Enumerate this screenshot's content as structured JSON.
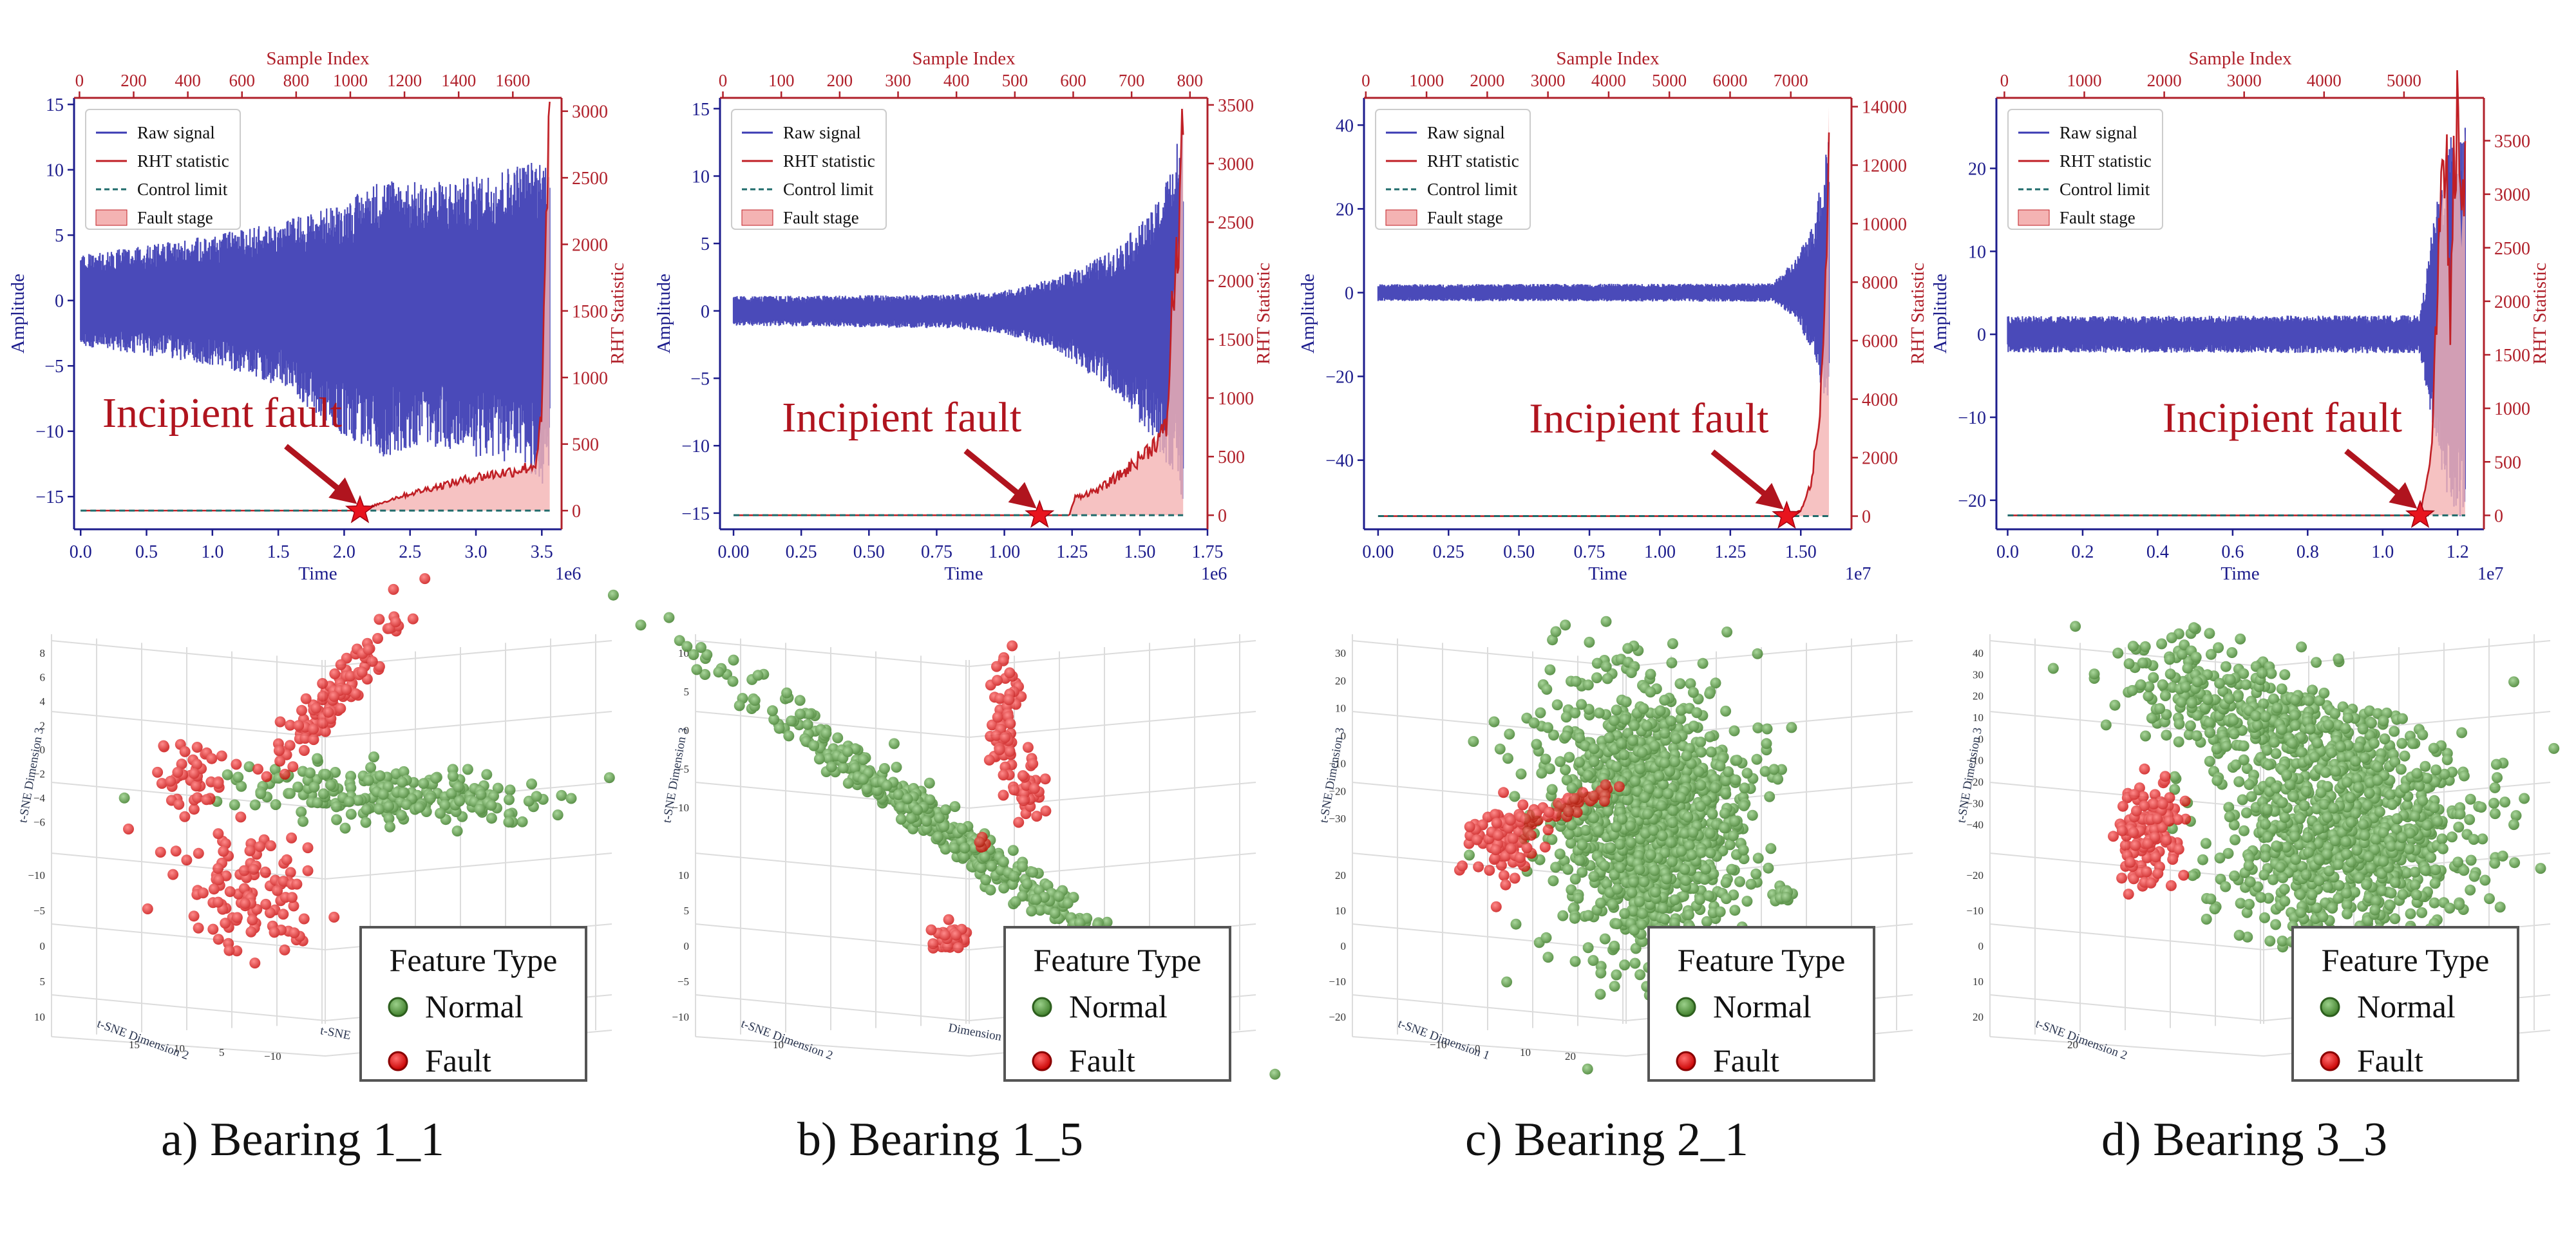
{
  "colors": {
    "raw_signal": "#3b3bb3",
    "rht": "#c01f25",
    "control_limit": "#1f6b6b",
    "fault_fill": "#f4b3b3",
    "axis_left": "#1c1c8c",
    "axis_right": "#b0202a",
    "normal": "#1e8a1e",
    "fault": "#e01515"
  },
  "legend_labels": {
    "raw": "Raw signal",
    "rht": "RHT statistic",
    "limit": "Control limit",
    "stage": "Fault stage"
  },
  "annotation": "Incipient fault",
  "axis_text": {
    "top": "Sample Index",
    "bottom": "Time",
    "left": "Amplitude",
    "right": "RHT Statistic"
  },
  "tsne_legend": {
    "title": "Feature Type",
    "normal": "Normal",
    "fault": "Fault"
  },
  "chart_data": [
    {
      "type": "line",
      "caption": "a) Bearing 1_1",
      "xlabel": "Time",
      "x_multiplier": "1e6",
      "xlim": [
        -0.05,
        3.65
      ],
      "x_ticks": [
        "0.0",
        "0.5",
        "1.0",
        "1.5",
        "2.0",
        "2.5",
        "3.0",
        "3.5"
      ],
      "x_tick_values": [
        0,
        0.5,
        1.0,
        1.5,
        2.0,
        2.5,
        3.0,
        3.5
      ],
      "top_xlabel": "Sample Index",
      "top_xlim": [
        -20,
        1780
      ],
      "top_ticks": [
        "0",
        "200",
        "400",
        "600",
        "800",
        "1000",
        "1200",
        "1400",
        "1600"
      ],
      "top_tick_values": [
        0,
        200,
        400,
        600,
        800,
        1000,
        1200,
        1400,
        1600
      ],
      "ylabel": "Amplitude",
      "ylim": [
        -17.5,
        15.5
      ],
      "y_ticks": [
        "15",
        "10",
        "5",
        "0",
        "−5",
        "−10",
        "−15"
      ],
      "y_tick_values": [
        15,
        10,
        5,
        0,
        -5,
        -10,
        -15
      ],
      "y2label": "RHT Statistic",
      "y2lim": [
        -140,
        3100
      ],
      "y2_ticks": [
        "3000",
        "2500",
        "2000",
        "1500",
        "1000",
        "500",
        "0"
      ],
      "y2_tick_values": [
        3000,
        2500,
        2000,
        1500,
        1000,
        500,
        0
      ],
      "signal_end": 3.56,
      "signal_envelope": [
        [
          0,
          3.5
        ],
        [
          0.5,
          4.2
        ],
        [
          1.0,
          5.0
        ],
        [
          1.5,
          6.0
        ],
        [
          2.0,
          7.5
        ],
        [
          2.3,
          9.5
        ],
        [
          2.6,
          9.0
        ],
        [
          3.0,
          9.5
        ],
        [
          3.3,
          10.5
        ],
        [
          3.56,
          11.0
        ]
      ],
      "signal_envelope_low": [
        [
          0,
          3.5
        ],
        [
          0.5,
          4.2
        ],
        [
          1.0,
          5.0
        ],
        [
          1.5,
          6.5
        ],
        [
          2.0,
          10.5
        ],
        [
          2.3,
          12.0
        ],
        [
          2.6,
          11.0
        ],
        [
          3.0,
          12.0
        ],
        [
          3.3,
          12.5
        ],
        [
          3.56,
          14.5
        ]
      ],
      "rht_curve": [
        [
          0,
          0
        ],
        [
          2.12,
          0
        ],
        [
          2.4,
          100
        ],
        [
          2.7,
          180
        ],
        [
          3.0,
          250
        ],
        [
          3.3,
          300
        ],
        [
          3.45,
          340
        ],
        [
          3.5,
          700
        ],
        [
          3.53,
          2000
        ],
        [
          3.56,
          3000
        ]
      ],
      "fault_stage": [
        2.12,
        3.56
      ],
      "control_limit": 0,
      "incipient_fault": [
        2.12,
        0
      ]
    },
    {
      "type": "line",
      "caption": "b) Bearing 1_5",
      "xlabel": "Time",
      "x_multiplier": "1e6",
      "xlim": [
        -0.05,
        1.75
      ],
      "x_ticks": [
        "0.00",
        "0.25",
        "0.50",
        "0.75",
        "1.00",
        "1.25",
        "1.50",
        "1.75"
      ],
      "x_tick_values": [
        0,
        0.25,
        0.5,
        0.75,
        1.0,
        1.25,
        1.5,
        1.75
      ],
      "top_xlabel": "Sample Index",
      "top_xlim": [
        -5,
        830
      ],
      "top_ticks": [
        "0",
        "100",
        "200",
        "300",
        "400",
        "500",
        "600",
        "700",
        "800"
      ],
      "top_tick_values": [
        0,
        100,
        200,
        300,
        400,
        500,
        600,
        700,
        800
      ],
      "ylabel": "Amplitude",
      "ylim": [
        -16.2,
        15.8
      ],
      "y_ticks": [
        "15",
        "10",
        "5",
        "0",
        "−5",
        "−10",
        "−15"
      ],
      "y_tick_values": [
        15,
        10,
        5,
        0,
        -5,
        -10,
        -15
      ],
      "y2label": "RHT Statistic",
      "y2lim": [
        -120,
        3560
      ],
      "y2_ticks": [
        "3500",
        "3000",
        "2500",
        "2000",
        "1500",
        "1000",
        "500",
        "0"
      ],
      "y2_tick_values": [
        3500,
        3000,
        2500,
        2000,
        1500,
        1000,
        500,
        0
      ],
      "signal_end": 1.66,
      "signal_envelope": [
        [
          0,
          1.1
        ],
        [
          0.8,
          1.2
        ],
        [
          1.0,
          1.5
        ],
        [
          1.2,
          2.5
        ],
        [
          1.4,
          4.5
        ],
        [
          1.55,
          7.5
        ],
        [
          1.62,
          11
        ],
        [
          1.66,
          14.5
        ]
      ],
      "signal_envelope_low": [
        [
          0,
          1.1
        ],
        [
          0.8,
          1.3
        ],
        [
          1.0,
          1.7
        ],
        [
          1.2,
          3.0
        ],
        [
          1.4,
          6.0
        ],
        [
          1.55,
          9.5
        ],
        [
          1.62,
          12.5
        ],
        [
          1.66,
          14.5
        ]
      ],
      "rht_curve": [
        [
          0,
          0
        ],
        [
          1.13,
          0
        ],
        [
          1.24,
          0
        ],
        [
          1.26,
          150
        ],
        [
          1.35,
          220
        ],
        [
          1.45,
          380
        ],
        [
          1.55,
          600
        ],
        [
          1.6,
          750
        ],
        [
          1.62,
          1800
        ],
        [
          1.64,
          2200
        ],
        [
          1.66,
          3500
        ]
      ],
      "fault_stage": [
        1.24,
        1.66
      ],
      "control_limit": 0,
      "incipient_fault": [
        1.13,
        0
      ]
    },
    {
      "type": "line",
      "caption": "c) Bearing 2_1",
      "xlabel": "Time",
      "x_multiplier": "1e7",
      "xlim": [
        -0.05,
        1.68
      ],
      "x_ticks": [
        "0.00",
        "0.25",
        "0.50",
        "0.75",
        "1.00",
        "1.25",
        "1.50"
      ],
      "x_tick_values": [
        0,
        0.25,
        0.5,
        0.75,
        1.0,
        1.25,
        1.5
      ],
      "top_xlabel": "Sample Index",
      "top_xlim": [
        -30,
        8000
      ],
      "top_ticks": [
        "0",
        "1000",
        "2000",
        "3000",
        "4000",
        "5000",
        "6000",
        "7000"
      ],
      "top_tick_values": [
        0,
        1000,
        2000,
        3000,
        4000,
        5000,
        6000,
        7000
      ],
      "ylabel": "Amplitude",
      "ylim": [
        -56.5,
        46.5
      ],
      "y_ticks": [
        "40",
        "20",
        "0",
        "−20",
        "−40"
      ],
      "y_tick_values": [
        40,
        20,
        0,
        -20,
        -40
      ],
      "y2label": "RHT Statistic",
      "y2lim": [
        -450,
        14300
      ],
      "y2_ticks": [
        "14000",
        "12000",
        "10000",
        "8000",
        "6000",
        "4000",
        "2000",
        "0"
      ],
      "y2_tick_values": [
        14000,
        12000,
        10000,
        8000,
        6000,
        4000,
        2000,
        0
      ],
      "signal_end": 1.6,
      "signal_envelope": [
        [
          0,
          2.0
        ],
        [
          1.4,
          2.2
        ],
        [
          1.48,
          8
        ],
        [
          1.54,
          16
        ],
        [
          1.58,
          30
        ],
        [
          1.6,
          44
        ]
      ],
      "signal_envelope_low": [
        [
          0,
          2.0
        ],
        [
          1.4,
          2.2
        ],
        [
          1.48,
          6
        ],
        [
          1.54,
          14
        ],
        [
          1.58,
          25
        ],
        [
          1.6,
          30
        ]
      ],
      "rht_curve": [
        [
          0,
          0
        ],
        [
          1.45,
          0
        ],
        [
          1.5,
          200
        ],
        [
          1.54,
          1200
        ],
        [
          1.57,
          4000
        ],
        [
          1.59,
          9000
        ],
        [
          1.6,
          14000
        ]
      ],
      "fault_stage": [
        1.45,
        1.6
      ],
      "control_limit": 0,
      "incipient_fault": [
        1.45,
        0
      ]
    },
    {
      "type": "line",
      "caption": "d) Bearing 3_3",
      "xlabel": "Time",
      "x_multiplier": "1e7",
      "xlim": [
        -0.03,
        1.27
      ],
      "x_ticks": [
        "0.0",
        "0.2",
        "0.4",
        "0.6",
        "0.8",
        "1.0",
        "1.2"
      ],
      "x_tick_values": [
        0,
        0.2,
        0.4,
        0.6,
        0.8,
        1.0,
        1.2
      ],
      "top_xlabel": "Sample Index",
      "top_xlim": [
        -100,
        6000
      ],
      "top_ticks": [
        "0",
        "1000",
        "2000",
        "3000",
        "4000",
        "5000"
      ],
      "top_tick_values": [
        0,
        1000,
        2000,
        3000,
        4000,
        5000
      ],
      "ylabel": "Amplitude",
      "ylim": [
        -23.5,
        28.5
      ],
      "y_ticks": [
        "20",
        "10",
        "0",
        "−10",
        "−20"
      ],
      "y_tick_values": [
        20,
        10,
        0,
        -10,
        -20
      ],
      "y2label": "RHT Statistic",
      "y2lim": [
        -130,
        3900
      ],
      "y2_ticks": [
        "3500",
        "3000",
        "2500",
        "2000",
        "1500",
        "1000",
        "500",
        "0"
      ],
      "y2_tick_values": [
        3500,
        3000,
        2500,
        2000,
        1500,
        1000,
        500,
        0
      ],
      "signal_end": 1.22,
      "signal_envelope": [
        [
          0,
          2.2
        ],
        [
          1.1,
          2.3
        ],
        [
          1.13,
          12
        ],
        [
          1.16,
          20
        ],
        [
          1.2,
          27
        ],
        [
          1.22,
          27
        ]
      ],
      "signal_envelope_low": [
        [
          0,
          2.2
        ],
        [
          1.1,
          2.3
        ],
        [
          1.13,
          10
        ],
        [
          1.16,
          18
        ],
        [
          1.2,
          22
        ],
        [
          1.22,
          22
        ]
      ],
      "rht_curve": [
        [
          0,
          0
        ],
        [
          1.1,
          0
        ],
        [
          1.13,
          600
        ],
        [
          1.15,
          2500
        ],
        [
          1.17,
          3500
        ],
        [
          1.18,
          1600
        ],
        [
          1.19,
          3200
        ],
        [
          1.2,
          3700
        ],
        [
          1.21,
          2500
        ],
        [
          1.22,
          3600
        ]
      ],
      "fault_stage": [
        1.1,
        1.22
      ],
      "control_limit": 0,
      "incipient_fault": [
        1.1,
        0
      ]
    },
    {
      "type": "scatter",
      "panel": "a) Bearing 1_1",
      "axis_titles": [
        "t-SNE Dimension 3",
        "t-SNE Dimension 2",
        "t-SNE"
      ],
      "axis_ticks": [
        [
          "8",
          "6",
          "4",
          "2",
          "0",
          "−2",
          "−4",
          "−6"
        ],
        [
          "−10",
          "−5",
          "0",
          "5",
          "10"
        ],
        [
          "15",
          "10",
          "5",
          "−10"
        ]
      ],
      "series": [
        {
          "name": "Normal",
          "clusters": [
            [
              615,
              1235,
              220,
              40,
              220,
              0.05
            ]
          ]
        },
        {
          "name": "Fault",
          "clusters": [
            [
              520,
              1080,
              150,
              22,
              115,
              -0.9
            ],
            [
              300,
              1210,
              60,
              70,
              45,
              0.8
            ],
            [
              390,
              1380,
              100,
              85,
              110,
              0.1
            ]
          ]
        }
      ]
    },
    {
      "type": "scatter",
      "panel": "b) Bearing 1_5",
      "axis_titles": [
        "t-SNE Dimension 3",
        "t-SNE Dimension 2",
        "Dimension 1"
      ],
      "axis_ticks": [
        [
          "10",
          "5",
          "0",
          "−5",
          "−10"
        ],
        [
          "10",
          "5",
          "0",
          "−5",
          "−10"
        ],
        [
          "10"
        ]
      ],
      "series": [
        {
          "name": "Normal",
          "clusters": [
            [
              1450,
              1275,
              380,
              28,
              420,
              0.62
            ]
          ]
        },
        {
          "name": "Fault",
          "clusters": [
            [
              1560,
              1125,
              20,
              85,
              55,
              0.05
            ],
            [
              1595,
              1230,
              22,
              40,
              40,
              0.1
            ],
            [
              1475,
              1455,
              25,
              18,
              35,
              0.2
            ],
            [
              1530,
              1308,
              10,
              10,
              8,
              0
            ]
          ]
        }
      ]
    },
    {
      "type": "scatter",
      "panel": "c) Bearing 2_1",
      "axis_titles": [
        "t-SNE Dimension 3",
        "t-SNE Dimension 1"
      ],
      "axis_ticks": [
        [
          "30",
          "20",
          "10",
          "0",
          "−10",
          "−20",
          "−30"
        ],
        [
          "20",
          "10",
          "0",
          "−10",
          "−20"
        ],
        [
          "−10",
          "0",
          "10",
          "20"
        ]
      ],
      "series": [
        {
          "name": "Normal",
          "clusters": [
            [
              2555,
              1270,
              135,
              190,
              1200,
              -0.15
            ],
            [
              2770,
              1390,
              14,
              12,
              20,
              0
            ]
          ]
        },
        {
          "name": "Fault",
          "clusters": [
            [
              2335,
              1300,
              50,
              55,
              90,
              0.2
            ],
            [
              2435,
              1250,
              70,
              14,
              50,
              -0.3
            ]
          ]
        }
      ]
    },
    {
      "type": "scatter",
      "panel": "d) Bearing 3_3",
      "axis_titles": [
        "t-SNE Dimension 3",
        "t-SNE Dimension 2"
      ],
      "axis_ticks": [
        [
          "40",
          "30",
          "20",
          "10",
          "0",
          "−10",
          "−20",
          "−30",
          "−40"
        ],
        [
          "−20",
          "−10",
          "0",
          "10",
          "20"
        ],
        [
          "20"
        ]
      ],
      "series": [
        {
          "name": "Normal",
          "clusters": [
            [
              3520,
              1120,
              210,
              75,
              420,
              0.35
            ],
            [
              3650,
              1300,
              180,
              145,
              900,
              0
            ]
          ]
        },
        {
          "name": "Fault",
          "clusters": [
            [
              3335,
              1300,
              45,
              70,
              130,
              0.1
            ]
          ]
        }
      ]
    }
  ]
}
